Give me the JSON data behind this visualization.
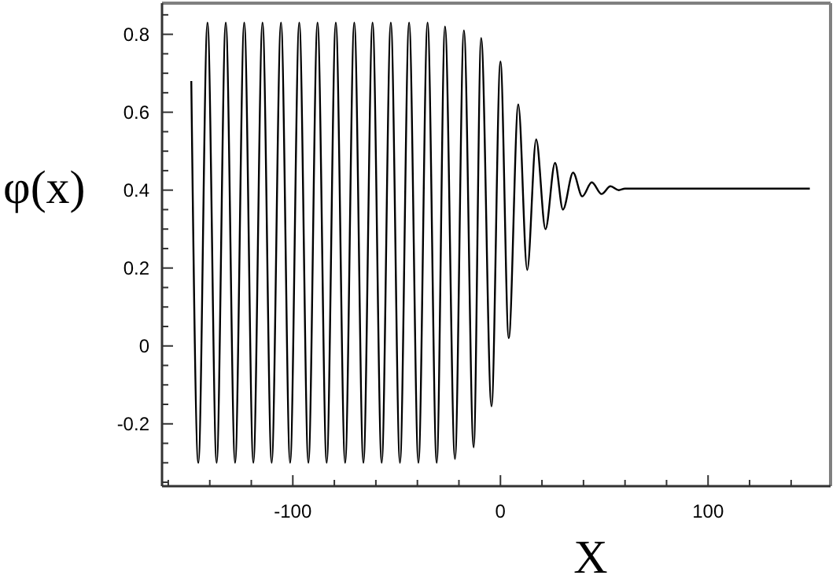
{
  "chart_data": {
    "type": "line",
    "xlabel": "X",
    "ylabel": "φ(x)",
    "xlim": [
      -163,
      159
    ],
    "ylim": [
      -0.36,
      0.88
    ],
    "xticks": [
      {
        "value": -160,
        "label": null
      },
      {
        "value": -140,
        "label": null
      },
      {
        "value": -120,
        "label": null
      },
      -100,
      {
        "value": -80,
        "label": null
      },
      {
        "value": -60,
        "label": null
      },
      {
        "value": -40,
        "label": null
      },
      {
        "value": -20,
        "label": null
      },
      0,
      {
        "value": 20,
        "label": null
      },
      {
        "value": 40,
        "label": null
      },
      {
        "value": 60,
        "label": null
      },
      {
        "value": 80,
        "label": null
      },
      100,
      {
        "value": 120,
        "label": null
      },
      {
        "value": 140,
        "label": null
      }
    ],
    "yticks": [
      {
        "value": -0.35,
        "label": null
      },
      {
        "value": -0.3,
        "label": null
      },
      {
        "value": -0.25,
        "label": null
      },
      -0.2,
      {
        "value": -0.15,
        "label": null
      },
      {
        "value": -0.1,
        "label": null
      },
      {
        "value": -0.05,
        "label": null
      },
      0,
      {
        "value": 0.05,
        "label": null
      },
      {
        "value": 0.1,
        "label": null
      },
      {
        "value": 0.15,
        "label": null
      },
      0.2,
      {
        "value": 0.25,
        "label": null
      },
      {
        "value": 0.3,
        "label": null
      },
      {
        "value": 0.35,
        "label": null
      },
      0.4,
      {
        "value": 0.45,
        "label": null
      },
      {
        "value": 0.5,
        "label": null
      },
      {
        "value": 0.55,
        "label": null
      },
      0.6,
      {
        "value": 0.65,
        "label": null
      },
      {
        "value": 0.7,
        "label": null
      },
      {
        "value": 0.75,
        "label": null
      },
      0.8,
      {
        "value": 0.85,
        "label": null
      }
    ],
    "grid": false,
    "marker": "none",
    "line_style": "solid",
    "series": [
      {
        "color": "#000000",
        "x": [
          -148.9,
          -145.5,
          -141.1,
          -136.7,
          -132.3,
          -127.8,
          -123.4,
          -119.0,
          -114.6,
          -110.2,
          -105.7,
          -101.3,
          -96.9,
          -92.5,
          -88.1,
          -83.7,
          -79.3,
          -74.8,
          -70.4,
          -66.0,
          -61.6,
          -57.2,
          -52.8,
          -48.4,
          -44.0,
          -39.5,
          -35.1,
          -30.7,
          -26.7,
          -21.9,
          -17.6,
          -12.9,
          -9.3,
          -4.3,
          0.0,
          4.0,
          8.6,
          12.9,
          17.2,
          21.7,
          26.3,
          30.1,
          35.0,
          39.4,
          44.0,
          48.7,
          53,
          57,
          60,
          149
        ],
        "values": [
          0.68,
          -0.3,
          0.83,
          -0.3,
          0.83,
          -0.3,
          0.83,
          -0.3,
          0.83,
          -0.3,
          0.83,
          -0.3,
          0.83,
          -0.3,
          0.83,
          -0.3,
          0.83,
          -0.3,
          0.83,
          -0.3,
          0.83,
          -0.3,
          0.83,
          -0.3,
          0.83,
          -0.3,
          0.83,
          -0.3,
          0.82,
          -0.29,
          0.81,
          -0.26,
          0.79,
          -0.155,
          0.73,
          0.02,
          0.62,
          0.195,
          0.53,
          0.3,
          0.47,
          0.35,
          0.445,
          0.384,
          0.42,
          0.39,
          0.41,
          0.4,
          0.404,
          0.404
        ]
      }
    ]
  }
}
